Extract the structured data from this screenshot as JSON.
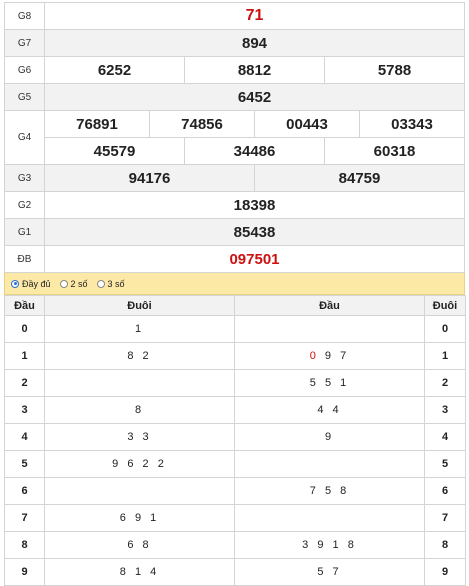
{
  "prizes": {
    "g8": {
      "label": "G8",
      "values": [
        "71"
      ]
    },
    "g7": {
      "label": "G7",
      "values": [
        "894"
      ]
    },
    "g6": {
      "label": "G6",
      "values": [
        "6252",
        "8812",
        "5788"
      ]
    },
    "g5": {
      "label": "G5",
      "values": [
        "6452"
      ]
    },
    "g4": {
      "label": "G4",
      "row1": [
        "76891",
        "74856",
        "00443",
        "03343"
      ],
      "row2": [
        "45579",
        "34486",
        "60318"
      ]
    },
    "g3": {
      "label": "G3",
      "values": [
        "94176",
        "84759"
      ]
    },
    "g2": {
      "label": "G2",
      "values": [
        "18398"
      ]
    },
    "g1": {
      "label": "G1",
      "values": [
        "85438"
      ]
    },
    "db": {
      "label": "ĐB",
      "values": [
        "097501"
      ]
    }
  },
  "options": {
    "items": [
      {
        "label": "Đầy đủ",
        "selected": true
      },
      {
        "label": "2 số",
        "selected": false
      },
      {
        "label": "3 số",
        "selected": false
      }
    ]
  },
  "head_tail": {
    "headers": [
      "Đầu",
      "Đuôi",
      "Đầu",
      "Đuôi"
    ],
    "rows": [
      {
        "digit": "0",
        "tails": "1",
        "heads": "",
        "digit2": "0"
      },
      {
        "digit": "1",
        "tails": "8 2",
        "heads": "0 9 7",
        "digit2": "1"
      },
      {
        "digit": "2",
        "tails": "",
        "heads": "5 5 1",
        "digit2": "2"
      },
      {
        "digit": "3",
        "tails": "8",
        "heads": "4 4",
        "digit2": "3"
      },
      {
        "digit": "4",
        "tails": "3 3",
        "heads": "9",
        "digit2": "4"
      },
      {
        "digit": "5",
        "tails": "9 6 2 2",
        "heads": "",
        "digit2": "5"
      },
      {
        "digit": "6",
        "tails": "",
        "heads": "7 5 8",
        "digit2": "6"
      },
      {
        "digit": "7",
        "tails": "6 9 1",
        "heads": "",
        "digit2": "7"
      },
      {
        "digit": "8",
        "tails": "6 8",
        "heads": "3 9 1 8",
        "digit2": "8"
      },
      {
        "digit": "9",
        "tails": "8 1 4",
        "heads": "5 7",
        "digit2": "9"
      }
    ]
  },
  "colors": {
    "special": "#cc1111",
    "options_bg": "#fce9a6",
    "alt_row": "#f2f2f2"
  }
}
